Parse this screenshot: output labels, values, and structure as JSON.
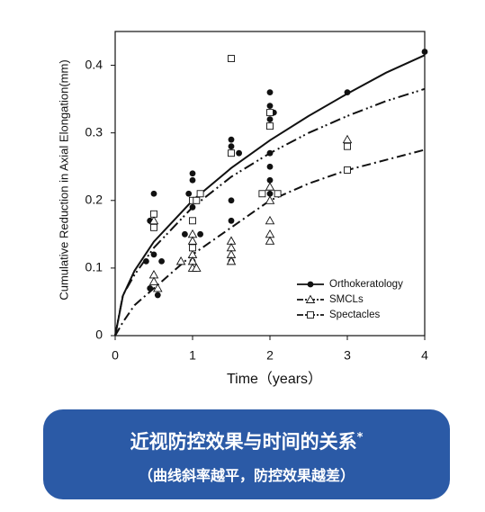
{
  "chart_data": {
    "type": "scatter",
    "x_label": "Time（years）",
    "y_label": "Cumulative Reduction in Axial Elongation(mm)",
    "xlim": [
      0,
      4
    ],
    "ylim": [
      0,
      0.45
    ],
    "xticks": [
      0,
      1,
      2,
      3,
      4
    ],
    "yticks": [
      0,
      0.1,
      0.2,
      0.3,
      0.4
    ],
    "legend": "lower right",
    "series": [
      {
        "name": "Orthokeratology",
        "color": "#111111",
        "marker": "circle",
        "line_style": "solid",
        "x": [
          0.4,
          0.45,
          0.45,
          0.5,
          0.5,
          0.55,
          0.6,
          0.9,
          0.95,
          1,
          1,
          1,
          1,
          1,
          1,
          1.1,
          1.5,
          1.5,
          1.5,
          1.5,
          1.5,
          1.6,
          2,
          2,
          2,
          2,
          2,
          2,
          2,
          2.05,
          3,
          4
        ],
        "values": [
          0.11,
          0.07,
          0.17,
          0.21,
          0.12,
          0.06,
          0.11,
          0.15,
          0.21,
          0.24,
          0.23,
          0.19,
          0.17,
          0.13,
          0.11,
          0.15,
          0.29,
          0.28,
          0.2,
          0.17,
          0.11,
          0.27,
          0.36,
          0.34,
          0.32,
          0.27,
          0.25,
          0.23,
          0.21,
          0.33,
          0.36,
          0.42
        ],
        "fit_x": [
          0,
          0.1,
          0.25,
          0.5,
          1,
          1.5,
          2,
          2.5,
          3,
          3.5,
          4
        ],
        "fit_values": [
          0,
          0.059,
          0.096,
          0.139,
          0.2,
          0.248,
          0.289,
          0.325,
          0.358,
          0.389,
          0.415
        ]
      },
      {
        "name": "SMCLs",
        "color": "#111111",
        "marker": "triangle",
        "line_style": "dash-dot",
        "x": [
          0.5,
          0.5,
          0.5,
          0.55,
          0.85,
          1,
          1,
          1,
          1,
          1,
          1.05,
          1.5,
          1.5,
          1.5,
          1.5,
          2,
          2,
          2,
          2,
          2,
          3
        ],
        "values": [
          0.17,
          0.09,
          0.08,
          0.07,
          0.11,
          0.15,
          0.14,
          0.12,
          0.11,
          0.1,
          0.1,
          0.14,
          0.13,
          0.12,
          0.11,
          0.22,
          0.2,
          0.17,
          0.15,
          0.14,
          0.29
        ],
        "fit_x": [
          0,
          0.1,
          0.25,
          0.5,
          1,
          1.5,
          2,
          2.5,
          3,
          3.5,
          4
        ],
        "fit_values": [
          0,
          0.02,
          0.045,
          0.07,
          0.12,
          0.16,
          0.2,
          0.225,
          0.245,
          0.26,
          0.275
        ]
      },
      {
        "name": "Spectacles",
        "color": "#111111",
        "marker": "square",
        "line_style": "dash-dot-dot",
        "x": [
          0.5,
          0.5,
          1,
          1,
          1,
          1.05,
          1.1,
          1.5,
          1.5,
          1.9,
          2,
          2,
          2.1,
          3,
          3
        ],
        "values": [
          0.18,
          0.16,
          0.2,
          0.17,
          0.13,
          0.2,
          0.21,
          0.41,
          0.27,
          0.21,
          0.33,
          0.31,
          0.21,
          0.28,
          0.245
        ],
        "fit_x": [
          0,
          0.1,
          0.25,
          0.5,
          1,
          1.5,
          2,
          2.5,
          3,
          3.5,
          4
        ],
        "fit_values": [
          0,
          0.06,
          0.09,
          0.13,
          0.19,
          0.235,
          0.27,
          0.3,
          0.325,
          0.347,
          0.365
        ]
      }
    ]
  },
  "banner": {
    "title": "近视防控效果与时间的关系",
    "note": "*",
    "subtitle": "（曲线斜率越平，防控效果越差）"
  }
}
